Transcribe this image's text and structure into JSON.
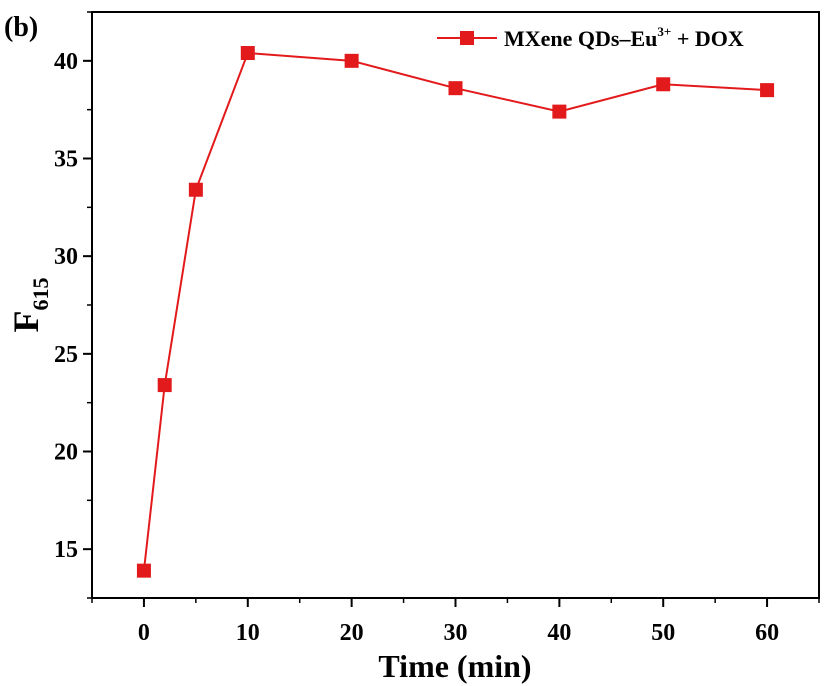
{
  "chart_data": {
    "type": "line",
    "panel_label": "(b)",
    "xlabel": "Time (min)",
    "ylabel_main": "F",
    "ylabel_sub": "615",
    "xlim": [
      -5,
      65
    ],
    "ylim": [
      12.5,
      42.5
    ],
    "x_ticks": [
      0,
      10,
      20,
      30,
      40,
      50,
      60
    ],
    "y_ticks": [
      15,
      20,
      25,
      30,
      35,
      40
    ],
    "x_minor_step": 5,
    "y_minor_step": 2.5,
    "grid": false,
    "legend_position": "top-right",
    "series": [
      {
        "name": "MXene QDs–Eu³⁺ + DOX",
        "name_parts": {
          "base": "MXene QDs–Eu",
          "sup": "3+",
          "tail": " + DOX"
        },
        "color": "#e31a1c",
        "marker": "square",
        "x": [
          0,
          2,
          5,
          10,
          20,
          30,
          40,
          50,
          60
        ],
        "y": [
          13.9,
          23.4,
          33.4,
          40.4,
          40.0,
          38.6,
          37.4,
          38.8,
          38.5
        ]
      }
    ]
  }
}
